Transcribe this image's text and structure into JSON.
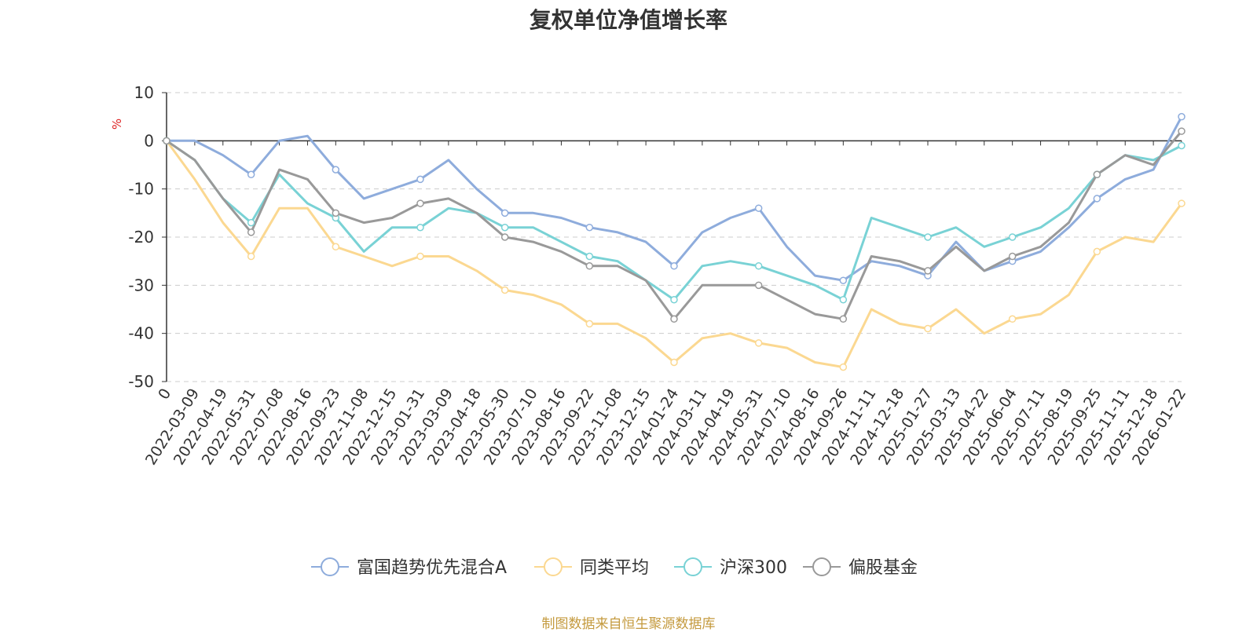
{
  "colors": {
    "fund": "#8eacdc",
    "peer": "#fbd891",
    "hs300": "#79d2d5",
    "stock_fund": "#999999",
    "title": "#333333",
    "axis": "#333333",
    "grid": "#cccccc",
    "unit": "#dd2222",
    "source": "#c49a3e"
  },
  "chart_data": {
    "type": "line",
    "title": "复权单位净值增长率",
    "ylabel": "%",
    "ylim": [
      -50,
      10
    ],
    "yticks": [
      "10",
      "0",
      "-10",
      "-20",
      "-30",
      "-40",
      "-50"
    ],
    "categories": [
      "0",
      "2022-03-09",
      "2022-04-19",
      "2022-05-31",
      "2022-07-08",
      "2022-08-16",
      "2022-09-23",
      "2022-11-08",
      "2022-12-15",
      "2023-01-31",
      "2023-03-09",
      "2023-04-18",
      "2023-05-30",
      "2023-07-10",
      "2023-08-16",
      "2023-09-22",
      "2023-11-08",
      "2023-12-15",
      "2024-01-24",
      "2024-03-11",
      "2024-04-19",
      "2024-05-31",
      "2024-07-10",
      "2024-08-16",
      "2024-09-26",
      "2024-11-11",
      "2024-12-18",
      "2025-01-27",
      "2025-03-13",
      "2025-04-22",
      "2025-06-04",
      "2025-07-11",
      "2025-08-19",
      "2025-09-25",
      "2025-11-11",
      "2025-12-18",
      "2026-01-22"
    ],
    "legend_position": "bottom",
    "grid": true,
    "series": [
      {
        "name": "富国趋势优先混合A",
        "key": "fund",
        "values": [
          0,
          0,
          -3,
          -7,
          0,
          1,
          -6,
          -12,
          -10,
          -8,
          -4,
          -10,
          -15,
          -15,
          -16,
          -18,
          -19,
          -21,
          -26,
          -19,
          -16,
          -14,
          -22,
          -28,
          -29,
          -25,
          -26,
          -28,
          -21,
          -27,
          -25,
          -23,
          -18,
          -12,
          -8,
          -6,
          5
        ]
      },
      {
        "name": "同类平均",
        "key": "peer",
        "values": [
          0,
          -8,
          -17,
          -24,
          -14,
          -14,
          -22,
          -24,
          -26,
          -24,
          -24,
          -27,
          -31,
          -32,
          -34,
          -38,
          -38,
          -41,
          -46,
          -41,
          -40,
          -42,
          -43,
          -46,
          -47,
          -35,
          -38,
          -39,
          -35,
          -40,
          -37,
          -36,
          -32,
          -23,
          -20,
          -21,
          -13
        ]
      },
      {
        "name": "沪深300",
        "key": "hs300",
        "values": [
          0,
          -4,
          -12,
          -17,
          -7,
          -13,
          -16,
          -23,
          -18,
          -18,
          -14,
          -15,
          -18,
          -18,
          -21,
          -24,
          -25,
          -29,
          -33,
          -26,
          -25,
          -26,
          -28,
          -30,
          -33,
          -16,
          -18,
          -20,
          -18,
          -22,
          -20,
          -18,
          -14,
          -7,
          -3,
          -4,
          -1
        ]
      },
      {
        "name": "偏股基金",
        "key": "stock_fund",
        "values": [
          0,
          -4,
          -12,
          -19,
          -6,
          -8,
          -15,
          -17,
          -16,
          -13,
          -12,
          -15,
          -20,
          -21,
          -23,
          -26,
          -26,
          -29,
          -37,
          -30,
          -30,
          -30,
          -33,
          -36,
          -37,
          -24,
          -25,
          -27,
          -22,
          -27,
          -24,
          -22,
          -17,
          -7,
          -3,
          -5,
          2
        ]
      }
    ]
  },
  "source_note": "制图数据来自恒生聚源数据库"
}
